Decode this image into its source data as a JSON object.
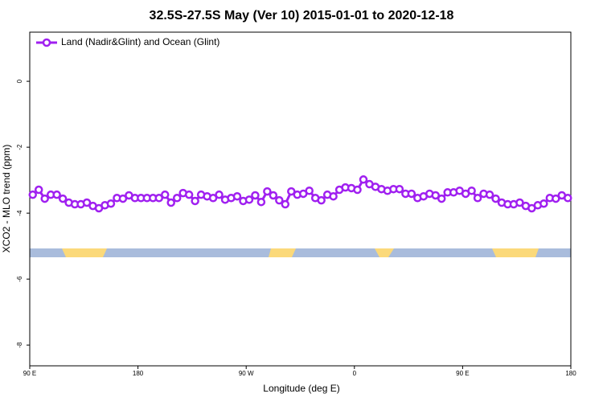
{
  "chart_data": {
    "type": "line",
    "title": "32.5S-27.5S May (Ver 10)   2015-01-01 to 2020-12-18",
    "x_label": "Longitude (deg E)",
    "y_label": "XCO2 - MLO trend (ppm)",
    "legend": "top-left",
    "xlim": [
      90,
      540
    ],
    "ylim": [
      -8.63,
      1.49
    ],
    "xticks": [
      {
        "value": 90,
        "label": "90 E"
      },
      180,
      {
        "value": 270,
        "label": "90 W"
      },
      {
        "value": 360,
        "label": "0"
      },
      {
        "value": 450,
        "label": "90 E"
      },
      {
        "value": 540,
        "label": "180"
      }
    ],
    "yticks": [
      0,
      -2,
      -4,
      -6,
      -8
    ],
    "x": [
      92.5,
      97.5,
      102.5,
      107.5,
      112.5,
      117.5,
      122.5,
      127.5,
      132.5,
      137.5,
      142.5,
      147.5,
      152.5,
      157.5,
      162.5,
      167.5,
      172.5,
      177.5,
      182.5,
      187.5,
      192.5,
      197.5,
      202.5,
      207.5,
      212.5,
      217.5,
      222.5,
      227.5,
      232.5,
      237.5,
      242.5,
      247.5,
      252.5,
      257.5,
      262.5,
      267.5,
      272.5,
      277.5,
      282.5,
      287.5,
      292.5,
      297.5,
      302.5,
      307.5,
      312.5,
      317.5,
      322.5,
      327.5,
      332.5,
      337.5,
      342.5,
      347.5,
      352.5,
      357.5,
      362.5,
      367.5,
      372.5,
      377.5,
      382.5,
      387.5,
      392.5,
      397.5,
      402.5,
      407.5,
      412.5,
      417.5,
      422.5,
      427.5,
      432.5,
      437.5,
      442.5,
      447.5,
      452.5,
      457.5,
      462.5,
      467.5,
      472.5,
      477.5,
      482.5,
      487.5,
      492.5,
      497.5,
      502.5,
      507.5,
      512.5,
      517.5,
      522.5,
      527.5,
      532.5,
      537.5
    ],
    "series": [
      {
        "name": "Land (Nadir&Glint) and Ocean (Glint)",
        "color": "#a020f0",
        "values": [
          -3.44,
          -3.29,
          -3.56,
          -3.44,
          -3.44,
          -3.56,
          -3.68,
          -3.73,
          -3.73,
          -3.68,
          -3.78,
          -3.85,
          -3.76,
          -3.71,
          -3.54,
          -3.56,
          -3.46,
          -3.54,
          -3.54,
          -3.54,
          -3.54,
          -3.54,
          -3.44,
          -3.68,
          -3.54,
          -3.39,
          -3.44,
          -3.63,
          -3.44,
          -3.49,
          -3.54,
          -3.44,
          -3.59,
          -3.54,
          -3.49,
          -3.63,
          -3.59,
          -3.46,
          -3.66,
          -3.34,
          -3.46,
          -3.61,
          -3.73,
          -3.34,
          -3.44,
          -3.41,
          -3.32,
          -3.54,
          -3.61,
          -3.44,
          -3.49,
          -3.29,
          -3.22,
          -3.24,
          -3.29,
          -2.98,
          -3.12,
          -3.2,
          -3.27,
          -3.32,
          -3.27,
          -3.27,
          -3.41,
          -3.41,
          -3.54,
          -3.49,
          -3.41,
          -3.46,
          -3.56,
          -3.37,
          -3.37,
          -3.32,
          -3.41,
          -3.32,
          -3.54,
          -3.41,
          -3.44,
          -3.56,
          -3.68,
          -3.73,
          -3.73,
          -3.68,
          -3.78,
          -3.85,
          -3.76,
          -3.71,
          -3.54,
          -3.56,
          -3.46,
          -3.54
        ]
      }
    ]
  }
}
